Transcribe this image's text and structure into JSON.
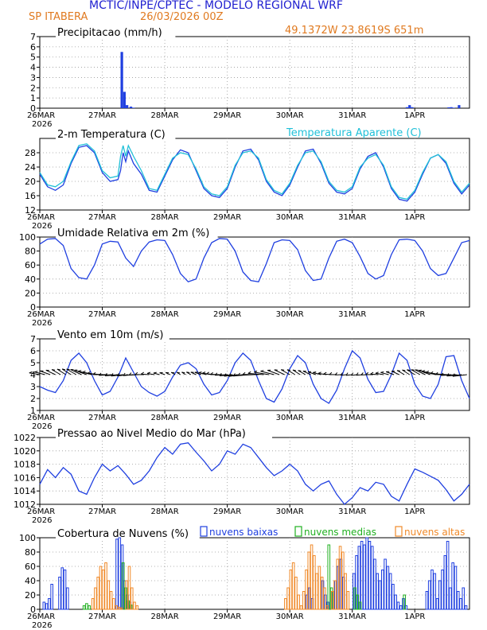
{
  "header": {
    "title": "MCTIC/INPE/CPTEC - MODELO REGIONAL WRF",
    "station": "SP ITABERA",
    "run": "26/03/2026 00Z",
    "coords": "49.1372W 23.8619S 651m"
  },
  "colors": {
    "blue": "#1f3fe0",
    "cyan": "#20c0d8",
    "green": "#20b020",
    "orange": "#f08a2a",
    "title_blue": "#2020d0",
    "title_orange": "#e07a20",
    "grid": "#9a9a9a"
  },
  "time_axis": {
    "start": "26MAR 2026",
    "end_hours": 144,
    "labels": [
      {
        "h": 0,
        "text": "26MAR",
        "sub": "2026"
      },
      {
        "h": 24,
        "text": "27MAR"
      },
      {
        "h": 48,
        "text": "28MAR"
      },
      {
        "h": 72,
        "text": "29MAR"
      },
      {
        "h": 96,
        "text": "30MAR"
      },
      {
        "h": 120,
        "text": "31MAR"
      },
      {
        "h": 144,
        "text": "1APR"
      }
    ]
  },
  "chart_data": [
    {
      "id": "precip",
      "type": "bar",
      "title": "Precipitacao (mm/h)",
      "ylim": [
        0,
        7
      ],
      "yticks": [
        0,
        1,
        2,
        3,
        4,
        5,
        6,
        7
      ],
      "x_hours": [
        31.5,
        32.5,
        33.5,
        35,
        36,
        141,
        142,
        143,
        157,
        158,
        159,
        161
      ],
      "values": [
        5.5,
        1.6,
        0.3,
        0.15,
        0.05,
        0.1,
        0.3,
        0.1,
        0.08,
        0.1,
        0.05,
        0.3
      ],
      "series_color": "blue"
    },
    {
      "id": "temp",
      "type": "line",
      "title": "2-m Temperatura (C)",
      "legend": "Temperatura Aparente (C)",
      "ylim": [
        12,
        32
      ],
      "yticks": [
        12,
        16,
        20,
        24,
        28
      ],
      "x_hours": [
        0,
        3,
        6,
        9,
        12,
        15,
        18,
        21,
        24,
        27,
        30,
        31,
        32,
        33,
        34,
        36,
        39,
        42,
        45,
        48,
        51,
        54,
        57,
        60,
        63,
        66,
        69,
        72,
        75,
        78,
        81,
        84,
        87,
        90,
        93,
        96,
        99,
        102,
        105,
        108,
        111,
        114,
        117,
        120,
        123,
        126,
        129,
        132,
        135,
        138,
        141,
        144,
        147,
        150,
        153,
        156,
        159,
        162,
        165
      ],
      "series": [
        {
          "name": "2-m Temperatura (C)",
          "color": "blue",
          "values": [
            22,
            18.5,
            17.5,
            19,
            25,
            29.5,
            30,
            28,
            22.5,
            20,
            20.5,
            23,
            28,
            25.5,
            28.5,
            25,
            22,
            17.5,
            17,
            21.5,
            26,
            28.8,
            28,
            23,
            18,
            16,
            15.5,
            18,
            24,
            28.5,
            29,
            26,
            20,
            17,
            16,
            19,
            24,
            28.5,
            29,
            25,
            19.5,
            17,
            16.5,
            18,
            23.5,
            27,
            28,
            24,
            18,
            15,
            14.5,
            17,
            22,
            26.5,
            27.5,
            25,
            19.5,
            16.5,
            19
          ]
        },
        {
          "name": "Temperatura Aparente (C)",
          "color": "cyan",
          "values": [
            22.5,
            19,
            18.5,
            20,
            25.5,
            30,
            30.5,
            28.5,
            23,
            21,
            21.5,
            27,
            30,
            27,
            30,
            27,
            23,
            18,
            17.5,
            22,
            26.5,
            28,
            27.5,
            23.5,
            18.5,
            16.5,
            16,
            18.5,
            24.5,
            28,
            28.5,
            26.5,
            20.5,
            17.5,
            16.5,
            19.5,
            24.5,
            28,
            28.5,
            25.5,
            20,
            17.5,
            17,
            18.5,
            24,
            26.5,
            27.5,
            24.5,
            18.5,
            15.5,
            15,
            17.5,
            22.5,
            26.5,
            27.5,
            25.5,
            20,
            17,
            19.5
          ]
        }
      ]
    },
    {
      "id": "rh",
      "type": "line",
      "title": "Umidade Relativa em 2m (%)",
      "ylim": [
        0,
        100
      ],
      "yticks": [
        0,
        20,
        40,
        60,
        80,
        100
      ],
      "x_hours": [
        0,
        3,
        6,
        9,
        12,
        15,
        18,
        21,
        24,
        27,
        30,
        33,
        36,
        39,
        42,
        45,
        48,
        51,
        54,
        57,
        60,
        63,
        66,
        69,
        72,
        75,
        78,
        81,
        84,
        87,
        90,
        93,
        96,
        99,
        102,
        105,
        108,
        111,
        114,
        117,
        120,
        123,
        126,
        129,
        132,
        135,
        138,
        141,
        144,
        147,
        150,
        153,
        156,
        159,
        162,
        165
      ],
      "series": [
        {
          "name": "Umidade Relativa em 2m (%)",
          "color": "blue",
          "values": [
            90,
            97,
            98,
            88,
            55,
            42,
            40,
            60,
            90,
            94,
            93,
            70,
            58,
            80,
            93,
            96,
            95,
            75,
            48,
            36,
            40,
            70,
            92,
            98,
            97,
            80,
            50,
            38,
            36,
            62,
            92,
            96,
            95,
            82,
            52,
            38,
            40,
            70,
            94,
            97,
            92,
            72,
            48,
            40,
            45,
            75,
            96,
            97,
            95,
            80,
            55,
            45,
            48,
            70,
            92,
            95
          ]
        }
      ]
    },
    {
      "id": "wind",
      "type": "line",
      "title": "Vento em 10m (m/s)",
      "ylim": [
        1,
        7
      ],
      "yticks": [
        1,
        2,
        3,
        4,
        5,
        6,
        7
      ],
      "x_hours": [
        0,
        3,
        6,
        9,
        12,
        15,
        18,
        21,
        24,
        27,
        30,
        33,
        36,
        39,
        42,
        45,
        48,
        51,
        54,
        57,
        60,
        63,
        66,
        69,
        72,
        75,
        78,
        81,
        84,
        87,
        90,
        93,
        96,
        99,
        102,
        105,
        108,
        111,
        114,
        117,
        120,
        123,
        126,
        129,
        132,
        135,
        138,
        141,
        144,
        147,
        150,
        153,
        156,
        159,
        162,
        165
      ],
      "series": [
        {
          "name": "Vento em 10m (m/s)",
          "color": "blue",
          "values": [
            3,
            2.7,
            2.5,
            3.5,
            5.2,
            5.8,
            5,
            3.5,
            2.3,
            2.6,
            3.8,
            5.4,
            4.2,
            3,
            2.5,
            2.2,
            2.6,
            3.8,
            4.8,
            5,
            4.5,
            3.2,
            2.3,
            2.5,
            3.5,
            5,
            5.8,
            5.2,
            3.5,
            2,
            1.7,
            2.8,
            4.5,
            5.6,
            5,
            3.2,
            2,
            1.6,
            2.7,
            4.5,
            6,
            5.4,
            3.6,
            2.5,
            2.6,
            4,
            5.8,
            5.2,
            3.2,
            2.2,
            2,
            3.2,
            5.5,
            5.6,
            3.5,
            2
          ]
        }
      ],
      "barbs_along": 4,
      "barbs": "wind direction arrows along the 4 m/s line"
    },
    {
      "id": "pressure",
      "type": "line",
      "title": "Pressao ao Nivel Medio do Mar (hPa)",
      "ylim": [
        1012,
        1022
      ],
      "yticks": [
        1012,
        1014,
        1016,
        1018,
        1020,
        1022
      ],
      "x_hours": [
        0,
        3,
        6,
        9,
        12,
        15,
        18,
        21,
        24,
        27,
        30,
        33,
        36,
        39,
        42,
        45,
        48,
        51,
        54,
        57,
        60,
        63,
        66,
        69,
        72,
        75,
        78,
        81,
        84,
        87,
        90,
        93,
        96,
        99,
        102,
        105,
        108,
        111,
        114,
        117,
        120,
        123,
        126,
        129,
        132,
        135,
        138,
        141,
        144,
        147,
        150,
        153,
        156,
        159,
        162,
        165
      ],
      "series": [
        {
          "name": "Pressao ao Nivel Medio do Mar (hPa)",
          "color": "blue",
          "values": [
            1015,
            1017.2,
            1016,
            1017.5,
            1016.5,
            1014,
            1013.5,
            1016,
            1018,
            1017,
            1017.8,
            1016.5,
            1015,
            1015.6,
            1017,
            1019,
            1020.5,
            1019.5,
            1021,
            1021.2,
            1019.8,
            1018.5,
            1017,
            1018,
            1020,
            1019.5,
            1021,
            1020.5,
            1019,
            1017.5,
            1016.3,
            1017,
            1018,
            1017,
            1015,
            1014,
            1015,
            1015.5,
            1013.5,
            1012,
            1013,
            1014.5,
            1014,
            1015.3,
            1015,
            1013.2,
            1012.5,
            1015,
            1017.3,
            1016.8,
            1016.2,
            1015.6,
            1014.2,
            1012.5,
            1013.5,
            1015
          ]
        }
      ]
    },
    {
      "id": "clouds",
      "type": "bar",
      "title": "Cobertura de Nuvens (%)",
      "legend": [
        "nuvens baixas",
        "nuvens medias",
        "nuvens altas"
      ],
      "ylim": [
        0,
        100
      ],
      "yticks": [
        0,
        20,
        40,
        60,
        80,
        100
      ],
      "series": [
        {
          "name": "nuvens baixas",
          "color": "blue",
          "x_hours": [
            2,
            3,
            4,
            5,
            8,
            9,
            10,
            11,
            30,
            31,
            32,
            33,
            34,
            35,
            103,
            104,
            105,
            109,
            110,
            111,
            113,
            114,
            115,
            116,
            117,
            121,
            122,
            123,
            124,
            125,
            126,
            127,
            128,
            129,
            130,
            131,
            132,
            133,
            134,
            135,
            136,
            137,
            138,
            139,
            140,
            141,
            149,
            150,
            151,
            152,
            153,
            154,
            155,
            156,
            157,
            158,
            159,
            160,
            161,
            162,
            163,
            164
          ],
          "values": [
            10,
            8,
            15,
            35,
            45,
            58,
            55,
            30,
            98,
            100,
            90,
            40,
            20,
            10,
            20,
            30,
            15,
            40,
            20,
            10,
            25,
            40,
            60,
            70,
            45,
            50,
            75,
            88,
            95,
            90,
            100,
            95,
            88,
            70,
            50,
            40,
            55,
            70,
            60,
            50,
            35,
            20,
            10,
            5,
            15,
            5,
            25,
            40,
            55,
            50,
            15,
            40,
            55,
            75,
            95,
            30,
            65,
            60,
            25,
            15,
            30,
            5
          ]
        },
        {
          "name": "nuvens medias",
          "color": "green",
          "x_hours": [
            17,
            18,
            19,
            32,
            33,
            34,
            35,
            111,
            112,
            121,
            122,
            123,
            140
          ],
          "values": [
            5,
            8,
            5,
            65,
            30,
            12,
            6,
            90,
            30,
            30,
            20,
            10,
            20
          ]
        },
        {
          "name": "nuvens altas",
          "color": "orange",
          "x_hours": [
            20,
            21,
            22,
            23,
            24,
            25,
            26,
            27,
            28,
            29,
            30,
            31,
            33,
            34,
            35,
            36,
            37,
            94,
            95,
            96,
            97,
            98,
            99,
            100,
            101,
            102,
            103,
            104,
            105,
            106,
            107,
            108,
            109,
            110,
            112,
            113,
            114,
            115,
            116,
            117,
            118
          ],
          "values": [
            15,
            30,
            45,
            60,
            55,
            65,
            40,
            25,
            15,
            5,
            3,
            2,
            40,
            60,
            30,
            10,
            5,
            15,
            30,
            55,
            65,
            45,
            20,
            5,
            25,
            55,
            80,
            90,
            75,
            50,
            60,
            45,
            30,
            5,
            25,
            40,
            70,
            88,
            80,
            50,
            25
          ]
        }
      ]
    }
  ]
}
